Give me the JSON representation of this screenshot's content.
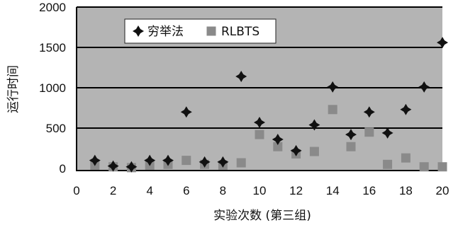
{
  "chart_data": {
    "type": "scatter",
    "xlabel": "实验次数 (第三组)",
    "ylabel": "运行时间",
    "xlim": [
      0,
      20
    ],
    "ylim": [
      0,
      2000
    ],
    "x_ticks": [
      "0",
      "2",
      "4",
      "6",
      "8",
      "10",
      "12",
      "14",
      "16",
      "18",
      "20"
    ],
    "y_ticks": [
      "0",
      "500",
      "1000",
      "1500",
      "2000"
    ],
    "grid": "horizontal",
    "legend_position": "top-left",
    "background_color": "#b4b4b4",
    "series": [
      {
        "name": "穷举法",
        "marker": "plus-diamond",
        "color": "#111111",
        "x": [
          1,
          2,
          3,
          4,
          5,
          6,
          7,
          8,
          9,
          10,
          11,
          12,
          13,
          14,
          15,
          16,
          17,
          18,
          19,
          20
        ],
        "y": [
          100,
          30,
          20,
          100,
          100,
          700,
          80,
          80,
          1140,
          570,
          360,
          220,
          540,
          1010,
          420,
          700,
          440,
          730,
          1010,
          1560
        ]
      },
      {
        "name": "RLBTS",
        "marker": "square",
        "color": "#8a8a8a",
        "x": [
          1,
          2,
          3,
          4,
          5,
          6,
          7,
          8,
          9,
          10,
          11,
          12,
          13,
          14,
          15,
          16,
          17,
          18,
          19,
          20
        ],
        "y": [
          40,
          20,
          10,
          40,
          50,
          100,
          50,
          40,
          70,
          420,
          270,
          180,
          210,
          730,
          270,
          450,
          50,
          130,
          20,
          20
        ]
      }
    ]
  }
}
